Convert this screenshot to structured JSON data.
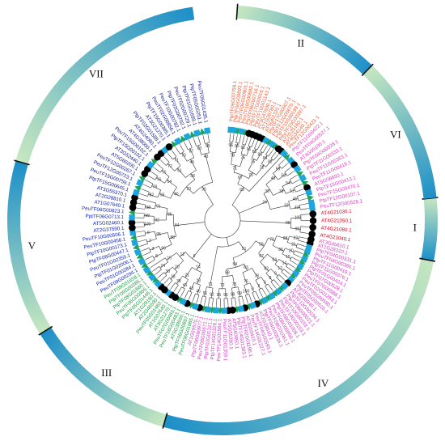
{
  "colors": {
    "group_I": "#e0001b",
    "group_II": "#f25c35",
    "group_III": "#1a9e43",
    "group_IV": "#d53cc6",
    "group_V": "#0b1fb4",
    "group_VI": "#e23ec0",
    "group_VII": "#141a8a",
    "ring_light": "#c8e8c0",
    "ring_dark": "#1b8ec8",
    "branch": "#333333",
    "marker_circle": "#000000",
    "marker_square": "#1ba6df",
    "marker_triangle": "#23a35a"
  },
  "groups": [
    {
      "label": "I",
      "start": 84,
      "end": 101
    },
    {
      "label": "II",
      "start": 4,
      "end": 44
    },
    {
      "label": "VI",
      "start": 44,
      "end": 84
    },
    {
      "label": "IV",
      "start": 101,
      "end": 196
    },
    {
      "label": "III",
      "start": 196,
      "end": 238
    },
    {
      "label": "V",
      "start": 238,
      "end": 286
    },
    {
      "label": "VII",
      "start": 286,
      "end": 352
    }
  ],
  "leaves": [
    {
      "label": "PtpTF06G00758.1",
      "group": "II",
      "marker": "square"
    },
    {
      "label": "PtpTF06G00893.1",
      "group": "II",
      "marker": "square"
    },
    {
      "label": "PeuTF06G00901.1",
      "group": "II",
      "marker": "triangle"
    },
    {
      "label": "PeuTF10G00682.1",
      "group": "II",
      "marker": "square"
    },
    {
      "label": "PtpTF08G00716.1",
      "group": "II",
      "marker": "triangle"
    },
    {
      "label": "PtpTF17G00016.1",
      "group": "II",
      "marker": "circle"
    },
    {
      "label": "PeuTF10G01143.1",
      "group": "II",
      "marker": "circle"
    },
    {
      "label": "AT3G47600.1",
      "group": "II",
      "marker": "circle"
    },
    {
      "label": "AT1G26780.1",
      "group": "II",
      "marker": "circle"
    },
    {
      "label": "AT5G62320.1",
      "group": "II",
      "marker": "circle"
    },
    {
      "label": "PtpTF17G00007.1",
      "group": "II",
      "marker": "square"
    },
    {
      "label": "PtpTF12G00670.1",
      "group": "II",
      "marker": "triangle"
    },
    {
      "label": "PtpTF15G00199.1",
      "group": "II",
      "marker": "square"
    },
    {
      "label": "PeuTF15G00397.1",
      "group": "II",
      "marker": "triangle"
    },
    {
      "label": "AT2G25160.1",
      "group": "II",
      "marker": "circle"
    },
    {
      "label": "AT4G34140.1",
      "group": "II",
      "marker": "circle"
    },
    {
      "label": "PeuTF12G00421.1",
      "group": "II",
      "marker": "square"
    },
    {
      "label": "PtpTF11G00422.1",
      "group": "VI",
      "marker": "triangle"
    },
    {
      "label": "PeuTF04G00527.1",
      "group": "VI",
      "marker": "square"
    },
    {
      "label": "AT4G05100.1",
      "group": "VI",
      "marker": "circle"
    },
    {
      "label": "PtpTF04G00328.1",
      "group": "VI",
      "marker": "square"
    },
    {
      "label": "PtpTF11G00333.1",
      "group": "VI",
      "marker": "triangle"
    },
    {
      "label": "PeuTF11G00363.1",
      "group": "VI",
      "marker": "square"
    },
    {
      "label": "PeuTF11G00415.1",
      "group": "VI",
      "marker": "triangle"
    },
    {
      "label": "AT5G06650.1",
      "group": "VI",
      "marker": "circle"
    },
    {
      "label": "PtpTF15G00413.1",
      "group": "VI",
      "marker": "square"
    },
    {
      "label": "PeuTF15G00470.1",
      "group": "VI",
      "marker": "triangle"
    },
    {
      "label": "PtpTF12G00107.1",
      "group": "VI",
      "marker": "square"
    },
    {
      "label": "PeuTF12G00528.1",
      "group": "VI",
      "marker": "square"
    },
    {
      "label": "AT4G21030.1",
      "group": "I",
      "marker": "circle"
    },
    {
      "label": "AT4G21050.1",
      "group": "I",
      "marker": "circle"
    },
    {
      "label": "AT4G21080.1",
      "group": "I",
      "marker": "circle"
    },
    {
      "label": "AT4G21040.1",
      "group": "I",
      "marker": "circle"
    },
    {
      "label": "AT3G45610.1",
      "group": "IV",
      "marker": "circle"
    },
    {
      "label": "AT1G28310.1",
      "group": "IV",
      "marker": "circle"
    },
    {
      "label": "PtpTF04G00331.1",
      "group": "IV",
      "marker": "square"
    },
    {
      "label": "PeuTF04G00386.1",
      "group": "IV",
      "marker": "square"
    },
    {
      "label": "PtpTF11G00419.1",
      "group": "IV",
      "marker": "triangle"
    },
    {
      "label": "PtpTF11G00376.1",
      "group": "IV",
      "marker": "square"
    },
    {
      "label": "PtpTF01G00424.1",
      "group": "IV",
      "marker": "triangle"
    },
    {
      "label": "PtpTF07G00528.1",
      "group": "IV",
      "marker": "square"
    },
    {
      "label": "PeuTF07G00588.1",
      "group": "IV",
      "marker": "triangle"
    },
    {
      "label": "PeuTF02G01263.1",
      "group": "IV",
      "marker": "square"
    },
    {
      "label": "PeuTF05G00580.1",
      "group": "IV",
      "marker": "triangle"
    },
    {
      "label": "PtpTF05G00516.1",
      "group": "IV",
      "marker": "square"
    },
    {
      "label": "AT4G00940.1",
      "group": "IV",
      "marker": "circle"
    },
    {
      "label": "PtpTF13G00034.1",
      "group": "IV",
      "marker": "square"
    },
    {
      "label": "PtpTF08G00021.1",
      "group": "IV",
      "marker": "triangle"
    },
    {
      "label": "PtpTF10G00153.1",
      "group": "IV",
      "marker": "square"
    },
    {
      "label": "PeuTF10G00153.1",
      "group": "IV",
      "marker": "triangle"
    },
    {
      "label": "PtpTF08G01008.1",
      "group": "IV",
      "marker": "square"
    },
    {
      "label": "PeuTF08G00950.1",
      "group": "IV",
      "marker": "triangle"
    },
    {
      "label": "PeuTF08G01061.1",
      "group": "IV",
      "marker": "square"
    },
    {
      "label": "PtpTF04G00536.1",
      "group": "IV",
      "marker": "triangle"
    },
    {
      "label": "AT2G28510.1",
      "group": "IV",
      "marker": "circle"
    },
    {
      "label": "PeuTF04G00593.1",
      "group": "IV",
      "marker": "square"
    },
    {
      "label": "PeuTF14G01227.1",
      "group": "IV",
      "marker": "triangle"
    },
    {
      "label": "AT3G50410.1",
      "group": "IV",
      "marker": "circle"
    },
    {
      "label": "PtpTF02G01196.1",
      "group": "IV",
      "marker": "square"
    },
    {
      "label": "PtpTF14G01383.1",
      "group": "IV",
      "marker": "triangle"
    },
    {
      "label": "AT5G60850.1",
      "group": "IV",
      "marker": "circle"
    },
    {
      "label": "AT5G55390.1",
      "group": "IV",
      "marker": "circle"
    },
    {
      "label": "PeuTF11G01359.1",
      "group": "IV",
      "marker": "square"
    },
    {
      "label": "PeuTF14G01564.1",
      "group": "IV",
      "marker": "triangle"
    },
    {
      "label": "PtpTF14G01328.1",
      "group": "IV",
      "marker": "square"
    },
    {
      "label": "PtpTF02G01221.1",
      "group": "IV",
      "marker": "triangle"
    },
    {
      "label": "PeuTF08G00671.1",
      "group": "IV",
      "marker": "square"
    },
    {
      "label": "PtpTF06G00977.1",
      "group": "IV",
      "marker": "triangle"
    },
    {
      "label": "AT1G69570.1",
      "group": "IV",
      "marker": "circle"
    },
    {
      "label": "PeuTF06G01065.1",
      "group": "III",
      "marker": "square"
    },
    {
      "label": "PtpTF06G00897.1",
      "group": "III",
      "marker": "triangle"
    },
    {
      "label": "AT5G39660.1",
      "group": "III",
      "marker": "circle"
    },
    {
      "label": "PeuTF16G00483.1",
      "group": "III",
      "marker": "square"
    },
    {
      "label": "PeuTF07G00483.1",
      "group": "III",
      "marker": "triangle"
    },
    {
      "label": "AT3G21270.1",
      "group": "III",
      "marker": "circle"
    },
    {
      "label": "AT1G07640.1",
      "group": "III",
      "marker": "circle"
    },
    {
      "label": "PeuTF05G01482.1",
      "group": "III",
      "marker": "square"
    },
    {
      "label": "AT2G46590.1",
      "group": "III",
      "marker": "circle"
    },
    {
      "label": "AT1G29160.1",
      "group": "III",
      "marker": "circle"
    },
    {
      "label": "PtpTF05G01446.1",
      "group": "III",
      "marker": "square"
    },
    {
      "label": "PeuTF06G00466.1",
      "group": "III",
      "marker": "triangle"
    },
    {
      "label": "PtpTF08G01660.1",
      "group": "III",
      "marker": "square"
    },
    {
      "label": "PtpTF09G00285.1",
      "group": "III",
      "marker": "triangle"
    },
    {
      "label": "PeuTF08G01658.1",
      "group": "III",
      "marker": "square"
    },
    {
      "label": "PeuTF09G00294.1",
      "group": "V",
      "marker": "triangle"
    },
    {
      "label": "PeuTF01G00284.1",
      "group": "V",
      "marker": "square"
    },
    {
      "label": "PtpTF01G02006.1",
      "group": "V",
      "marker": "triangle"
    },
    {
      "label": "PeuTF01G02355.1",
      "group": "V",
      "marker": "square"
    },
    {
      "label": "PtpTF08G00447.1",
      "group": "V",
      "marker": "triangle"
    },
    {
      "label": "PtpTF10G00173.1",
      "group": "V",
      "marker": "square"
    },
    {
      "label": "PeuTF10G00456.1",
      "group": "V",
      "marker": "triangle"
    },
    {
      "label": "PeuTF10G00506.1",
      "group": "V",
      "marker": "square"
    },
    {
      "label": "AT2G37590.1",
      "group": "V",
      "marker": "circle"
    },
    {
      "label": "AT5G02460.1",
      "group": "V",
      "marker": "circle"
    },
    {
      "label": "PptTF06G0713.1",
      "group": "V",
      "marker": "square"
    },
    {
      "label": "PeuTF06G00823.1",
      "group": "V",
      "marker": "triangle"
    },
    {
      "label": "AT1G07640.1",
      "group": "V",
      "marker": "circle"
    },
    {
      "label": "AT2G28810.1",
      "group": "V",
      "marker": "circle"
    },
    {
      "label": "AT3G55370.1",
      "group": "V",
      "marker": "circle"
    },
    {
      "label": "PtpTF15G00645.1",
      "group": "VII",
      "marker": "square"
    },
    {
      "label": "PeuTF15G00759.1",
      "group": "VII",
      "marker": "triangle"
    },
    {
      "label": "PeuTF12G00723.1",
      "group": "VII",
      "marker": "square"
    },
    {
      "label": "PeuTF12G00267.1",
      "group": "VII",
      "marker": "triangle"
    },
    {
      "label": "AT5G60200.1",
      "group": "VII",
      "marker": "circle"
    },
    {
      "label": "AT3G52440.1",
      "group": "VII",
      "marker": "circle"
    },
    {
      "label": "PtpTF15G00102.1",
      "group": "VII",
      "marker": "square"
    },
    {
      "label": "PeuTF15G00102.1",
      "group": "VII",
      "marker": "triangle"
    },
    {
      "label": "AT4G38000.1",
      "group": "VII",
      "marker": "circle"
    },
    {
      "label": "AT4G24060.1",
      "group": "VII",
      "marker": "circle"
    },
    {
      "label": "PtpTF02G01588.1",
      "group": "VII",
      "marker": "square"
    },
    {
      "label": "AT3G21270.1",
      "group": "VII",
      "marker": "circle"
    },
    {
      "label": "PtpTF15G00365.1",
      "group": "VII",
      "marker": "triangle"
    },
    {
      "label": "PeuTF02G00856.1",
      "group": "VII",
      "marker": "square"
    },
    {
      "label": "PeuTF10G00782.1",
      "group": "VII",
      "marker": "triangle"
    },
    {
      "label": "PtpTF02G00702.1",
      "group": "VII",
      "marker": "square"
    },
    {
      "label": "PeuTF02G00729.1",
      "group": "VII",
      "marker": "triangle"
    },
    {
      "label": "PtpTF01G01699.1",
      "group": "VII",
      "marker": "square"
    },
    {
      "label": "PtpTF05G00251.1",
      "group": "VII",
      "marker": "triangle"
    },
    {
      "label": "PeuTF05G01435.1",
      "group": "VII",
      "marker": "square"
    }
  ],
  "bootstrap": [
    "100",
    "99",
    "98",
    "96",
    "95",
    "92",
    "91",
    "88",
    "86",
    "84",
    "82",
    "78",
    "76",
    "75",
    "72",
    "71",
    "70",
    "67",
    "63",
    "59",
    "58",
    "54",
    "51",
    "45",
    "43",
    "40",
    "38",
    "33",
    "30",
    "24",
    "23",
    "21",
    "20",
    "15",
    "14",
    "12",
    "9",
    "8",
    "3",
    "2",
    "0"
  ]
}
